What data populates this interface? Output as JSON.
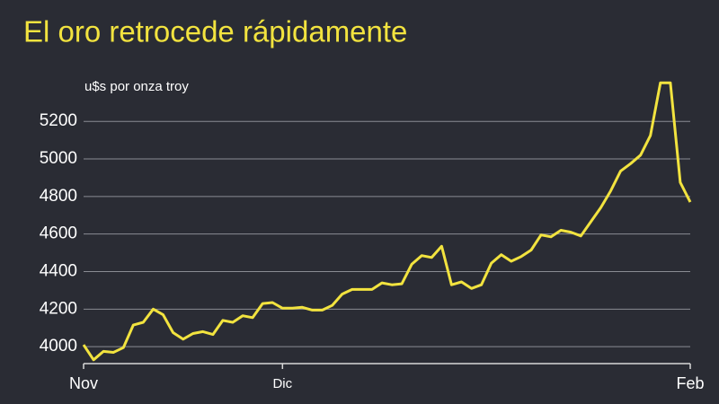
{
  "chart_data": {
    "type": "line",
    "title": "El oro retrocede rápidamente",
    "subtitle": "u$s por onza troy",
    "categories": [
      "Nov",
      null,
      null,
      null,
      null,
      null,
      null,
      null,
      null,
      null,
      null,
      null,
      null,
      null,
      null,
      null,
      null,
      null,
      null,
      null,
      "Dic",
      null,
      null,
      null,
      null,
      null,
      null,
      null,
      null,
      null,
      null,
      null,
      null,
      null,
      null,
      null,
      null,
      null,
      null,
      null,
      null,
      null,
      null,
      null,
      null,
      null,
      null,
      null,
      null,
      null,
      null,
      null,
      null,
      null,
      null,
      null,
      null,
      null,
      null,
      null,
      null,
      "Feb"
    ],
    "series": [
      {
        "name": "Oro",
        "color": "#f2e33f",
        "values": [
          4010,
          3930,
          3975,
          3970,
          3995,
          4115,
          4130,
          4200,
          4170,
          4075,
          4040,
          4070,
          4080,
          4065,
          4140,
          4130,
          4165,
          4155,
          4230,
          4235,
          4205,
          4205,
          4210,
          4195,
          4195,
          4220,
          4280,
          4305,
          4305,
          4305,
          4340,
          4330,
          4335,
          4440,
          4485,
          4475,
          4535,
          4330,
          4345,
          4310,
          4330,
          4445,
          4490,
          4455,
          4480,
          4515,
          4595,
          4585,
          4620,
          4610,
          4590,
          4665,
          4740,
          4830,
          4935,
          4975,
          5020,
          5125,
          5405,
          5405,
          4875,
          4770
        ]
      }
    ],
    "ylim": [
      3910,
      5440
    ],
    "yticks": [
      4000,
      4200,
      4400,
      4600,
      4800,
      5000,
      5200
    ],
    "grid": true
  }
}
